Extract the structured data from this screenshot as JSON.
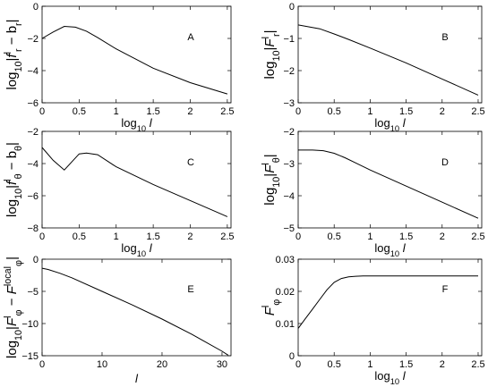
{
  "figure": {
    "background": "#ffffff",
    "line_color": "#000000"
  },
  "chart_data": [
    {
      "id": "A",
      "type": "line",
      "panel_label": "A",
      "xlabel": "log10 l",
      "ylabel": "log10|f^l_r − b_r|",
      "xlim": [
        0,
        2.55
      ],
      "ylim": [
        -6,
        0
      ],
      "xticks": [
        0,
        0.5,
        1,
        1.5,
        2,
        2.5
      ],
      "xtick_labels": [
        "0",
        "0.5",
        "1",
        "1.5",
        "2",
        "2.5"
      ],
      "yticks": [
        -6,
        -4,
        -2,
        0
      ],
      "ytick_labels": [
        "−6",
        "−4",
        "−2",
        "0"
      ],
      "grid": false,
      "series": [
        {
          "x": [
            0,
            0.15,
            0.3,
            0.45,
            0.6,
            0.75,
            1.0,
            1.5,
            2.0,
            2.5
          ],
          "y": [
            -2.0,
            -1.6,
            -1.25,
            -1.3,
            -1.55,
            -1.95,
            -2.65,
            -3.85,
            -4.75,
            -5.45
          ]
        }
      ]
    },
    {
      "id": "B",
      "type": "line",
      "panel_label": "B",
      "xlabel": "log10 l",
      "ylabel": "log10|F^l_r|",
      "xlim": [
        0,
        2.55
      ],
      "ylim": [
        -3,
        0
      ],
      "xticks": [
        0,
        0.5,
        1,
        1.5,
        2,
        2.5
      ],
      "xtick_labels": [
        "0",
        "0.5",
        "1",
        "1.5",
        "2",
        "2.5"
      ],
      "yticks": [
        -3,
        -2,
        -1,
        0
      ],
      "ytick_labels": [
        "−3",
        "−2",
        "−1",
        "0"
      ],
      "grid": false,
      "series": [
        {
          "x": [
            0,
            0.3,
            0.5,
            0.7,
            1.0,
            1.5,
            2.0,
            2.5
          ],
          "y": [
            -0.58,
            -0.7,
            -0.86,
            -1.03,
            -1.3,
            -1.76,
            -2.26,
            -2.76
          ]
        }
      ]
    },
    {
      "id": "C",
      "type": "line",
      "panel_label": "C",
      "xlabel": "log10 l",
      "ylabel": "log10|f^l_θ − b_θ|",
      "xlim": [
        0,
        2.55
      ],
      "ylim": [
        -8,
        -2
      ],
      "xticks": [
        0,
        0.5,
        1,
        1.5,
        2,
        2.5
      ],
      "xtick_labels": [
        "0",
        "0.5",
        "1",
        "1.5",
        "2",
        "2.5"
      ],
      "yticks": [
        -8,
        -6,
        -4,
        -2
      ],
      "ytick_labels": [
        "−8",
        "−6",
        "−4",
        "−2"
      ],
      "grid": false,
      "series": [
        {
          "x": [
            0,
            0.15,
            0.3,
            0.4,
            0.5,
            0.6,
            0.75,
            1.0,
            1.5,
            2.0,
            2.5
          ],
          "y": [
            -3.0,
            -3.8,
            -4.4,
            -3.9,
            -3.4,
            -3.35,
            -3.45,
            -4.2,
            -5.3,
            -6.3,
            -7.3
          ]
        }
      ]
    },
    {
      "id": "D",
      "type": "line",
      "panel_label": "D",
      "xlabel": "log10 l",
      "ylabel": "log10|F^l_θ|",
      "xlim": [
        0,
        2.55
      ],
      "ylim": [
        -5,
        -2
      ],
      "xticks": [
        0,
        0.5,
        1,
        1.5,
        2,
        2.5
      ],
      "xtick_labels": [
        "0",
        "0.5",
        "1",
        "1.5",
        "2",
        "2.5"
      ],
      "yticks": [
        -5,
        -4,
        -3,
        -2
      ],
      "ytick_labels": [
        "−5",
        "−4",
        "−3",
        "−2"
      ],
      "grid": false,
      "series": [
        {
          "x": [
            0,
            0.2,
            0.35,
            0.5,
            0.65,
            0.8,
            1.0,
            1.5,
            2.0,
            2.5
          ],
          "y": [
            -2.58,
            -2.58,
            -2.6,
            -2.68,
            -2.82,
            -2.98,
            -3.2,
            -3.7,
            -4.2,
            -4.7
          ]
        }
      ]
    },
    {
      "id": "E",
      "type": "line",
      "panel_label": "E",
      "xlabel": "l",
      "ylabel": "log10|F^l_φ − F^local_φ|",
      "xlim": [
        0,
        31.5
      ],
      "ylim": [
        -15,
        0
      ],
      "xticks": [
        0,
        10,
        20,
        30
      ],
      "xtick_labels": [
        "0",
        "10",
        "20",
        "30"
      ],
      "yticks": [
        -15,
        -10,
        -5,
        0
      ],
      "ytick_labels": [
        "−15",
        "−10",
        "−5",
        "0"
      ],
      "grid": false,
      "series": [
        {
          "x": [
            0,
            1,
            3,
            5,
            10,
            15,
            20,
            25,
            30,
            31
          ],
          "y": [
            -1.4,
            -1.6,
            -2.2,
            -2.9,
            -5.0,
            -7.1,
            -9.3,
            -11.7,
            -14.3,
            -14.9
          ]
        }
      ]
    },
    {
      "id": "F",
      "type": "line",
      "panel_label": "F",
      "xlabel": "log10 l",
      "ylabel": "F^l_φ",
      "xlim": [
        0,
        2.55
      ],
      "ylim": [
        0,
        0.03
      ],
      "xticks": [
        0,
        0.5,
        1,
        1.5,
        2,
        2.5
      ],
      "xtick_labels": [
        "0",
        "0.5",
        "1",
        "1.5",
        "2",
        "2.5"
      ],
      "yticks": [
        0,
        0.01,
        0.02,
        0.03
      ],
      "ytick_labels": [
        "0",
        "0.01",
        "0.02",
        "0.03"
      ],
      "grid": false,
      "series": [
        {
          "x": [
            0,
            0.1,
            0.2,
            0.3,
            0.4,
            0.5,
            0.6,
            0.7,
            0.8,
            0.9,
            1.0,
            1.5,
            2.0,
            2.5
          ],
          "y": [
            0.0085,
            0.0115,
            0.0145,
            0.0175,
            0.0205,
            0.0228,
            0.024,
            0.0245,
            0.0247,
            0.0248,
            0.0248,
            0.0248,
            0.0248,
            0.0248
          ]
        }
      ]
    }
  ]
}
